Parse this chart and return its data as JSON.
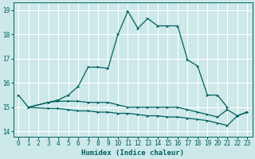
{
  "xlabel": "Humidex (Indice chaleur)",
  "xlim": [
    -0.5,
    23.5
  ],
  "ylim": [
    13.8,
    19.3
  ],
  "yticks": [
    14,
    15,
    16,
    17,
    18,
    19
  ],
  "xticks": [
    0,
    1,
    2,
    3,
    4,
    5,
    6,
    7,
    8,
    9,
    10,
    11,
    12,
    13,
    14,
    15,
    16,
    17,
    18,
    19,
    20,
    21,
    22,
    23
  ],
  "bg_color": "#cce8e8",
  "grid_color": "#ffffff",
  "line_color": "#006060",
  "line1_x": [
    0,
    1,
    3,
    4,
    5,
    6,
    7,
    8,
    9,
    10,
    11,
    12,
    13,
    14,
    15,
    16,
    17,
    18,
    19,
    20,
    21
  ],
  "line1_y": [
    15.5,
    15.0,
    15.2,
    15.3,
    15.5,
    15.85,
    16.65,
    16.65,
    16.6,
    18.0,
    18.95,
    18.25,
    18.65,
    18.35,
    18.35,
    18.35,
    16.95,
    16.7,
    15.5,
    15.5,
    15.0
  ],
  "line2_x": [
    1,
    3,
    4,
    5,
    6,
    7,
    8,
    9,
    10,
    11,
    12,
    13,
    14,
    15,
    16,
    17,
    18,
    19,
    20,
    21,
    22,
    23
  ],
  "line2_y": [
    15.0,
    15.2,
    15.25,
    15.25,
    15.25,
    15.2,
    15.2,
    15.2,
    15.1,
    15.0,
    15.0,
    15.0,
    15.0,
    15.0,
    15.0,
    14.9,
    14.8,
    14.7,
    14.6,
    14.9,
    14.65,
    14.8
  ],
  "line3_x": [
    1,
    3,
    4,
    5,
    6,
    7,
    8,
    9,
    10,
    11,
    12,
    13,
    14,
    15,
    16,
    17,
    18,
    19,
    20,
    21,
    22,
    23
  ],
  "line3_y": [
    15.0,
    14.95,
    14.95,
    14.9,
    14.85,
    14.85,
    14.8,
    14.8,
    14.75,
    14.75,
    14.7,
    14.65,
    14.65,
    14.6,
    14.6,
    14.55,
    14.5,
    14.45,
    14.35,
    14.25,
    14.65,
    14.8
  ]
}
